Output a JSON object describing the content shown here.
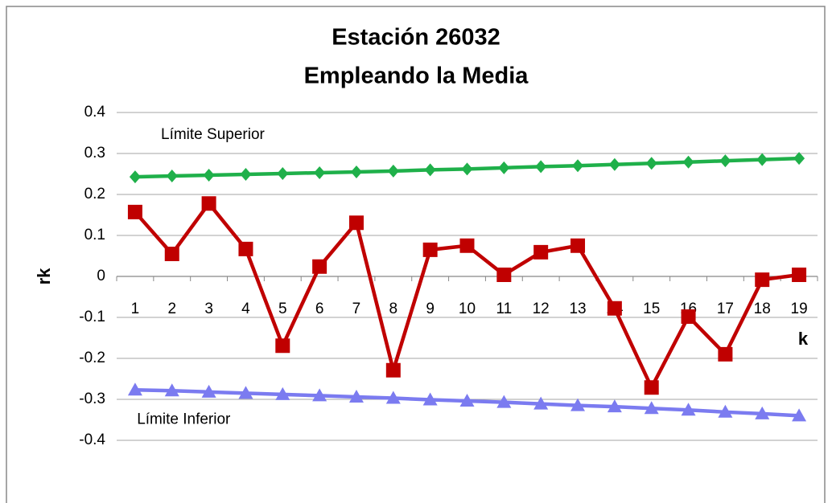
{
  "chart_data": {
    "type": "line",
    "title": [
      "Estación 26032",
      "Empleando la Media"
    ],
    "x_label": "k",
    "y_label": "rk",
    "categories": [
      "1",
      "2",
      "3",
      "4",
      "5",
      "6",
      "7",
      "8",
      "9",
      "10",
      "11",
      "12",
      "13",
      "14",
      "15",
      "16",
      "17",
      "18",
      "19"
    ],
    "series": [
      {
        "color": "#1fb04a",
        "marker": "diamond",
        "values": [
          0.243,
          0.245,
          0.247,
          0.249,
          0.251,
          0.253,
          0.255,
          0.257,
          0.26,
          0.262,
          0.265,
          0.268,
          0.27,
          0.273,
          0.276,
          0.279,
          0.282,
          0.285,
          0.288
        ]
      },
      {
        "color": "#c00000",
        "marker": "square",
        "values": [
          0.157,
          0.055,
          0.178,
          0.067,
          -0.169,
          0.024,
          0.131,
          -0.229,
          0.065,
          0.075,
          0.004,
          0.059,
          0.075,
          -0.078,
          -0.271,
          -0.098,
          -0.19,
          -0.008,
          0.004
        ]
      },
      {
        "color": "#7b7bf0",
        "marker": "triangle",
        "values": [
          -0.277,
          -0.279,
          -0.282,
          -0.285,
          -0.288,
          -0.291,
          -0.294,
          -0.297,
          -0.301,
          -0.304,
          -0.307,
          -0.311,
          -0.315,
          -0.318,
          -0.322,
          -0.326,
          -0.331,
          -0.335,
          -0.34
        ]
      }
    ],
    "annotations": [
      {
        "text": "Límite Superior",
        "x": 1.2,
        "y": 0.345
      },
      {
        "text": "Límite Inferior",
        "x": 0.55,
        "y": -0.35
      }
    ],
    "ylim": [
      -0.4,
      0.4
    ],
    "yticks": [
      -0.4,
      -0.3,
      -0.2,
      -0.1,
      0,
      0.1,
      0.2,
      0.3,
      0.4
    ],
    "grid": true
  }
}
